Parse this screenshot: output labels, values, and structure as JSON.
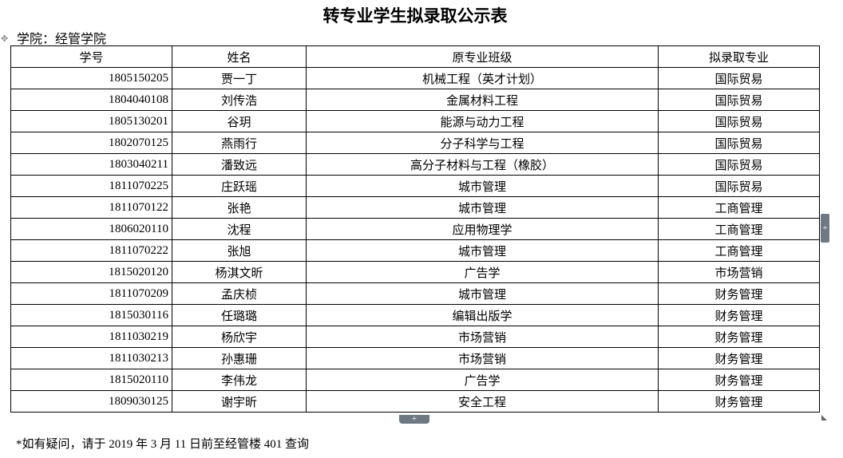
{
  "title": "转专业学生拟录取公示表",
  "college": "学院：经管学院",
  "headers": [
    "学号",
    "姓名",
    "原专业班级",
    "拟录取专业"
  ],
  "rows": [
    [
      "1805150205",
      "贾一丁",
      "机械工程（英才计划）",
      "国际贸易"
    ],
    [
      "1804040108",
      "刘传浩",
      "金属材料工程",
      "国际贸易"
    ],
    [
      "1805130201",
      "谷玥",
      "能源与动力工程",
      "国际贸易"
    ],
    [
      "1802070125",
      "燕雨行",
      "分子科学与工程",
      "国际贸易"
    ],
    [
      "1803040211",
      "潘致远",
      "高分子材料与工程（橡胶）",
      "国际贸易"
    ],
    [
      "1811070225",
      "庄跃瑶",
      "城市管理",
      "国际贸易"
    ],
    [
      "1811070122",
      "张艳",
      "城市管理",
      "工商管理"
    ],
    [
      "1806020110",
      "沈程",
      "应用物理学",
      "工商管理"
    ],
    [
      "1811070222",
      "张旭",
      "城市管理",
      "工商管理"
    ],
    [
      "1815020120",
      "杨淇文昕",
      "广告学",
      "市场营销"
    ],
    [
      "1811070209",
      "孟庆桢",
      "城市管理",
      "财务管理"
    ],
    [
      "1815030116",
      "任璐璐",
      "编辑出版学",
      "财务管理"
    ],
    [
      "1811030219",
      "杨欣宇",
      "市场营销",
      "财务管理"
    ],
    [
      "1811030213",
      "孙惠珊",
      "市场营销",
      "财务管理"
    ],
    [
      "1815020110",
      "李伟龙",
      "广告学",
      "财务管理"
    ],
    [
      "1809030125",
      "谢宇昕",
      "安全工程",
      "财务管理"
    ]
  ],
  "footer": "*如有疑问，请于 2019 年 3 月 11 日前至经管楼 401 查询",
  "controls": {
    "plus": "+",
    "move": "✥"
  }
}
